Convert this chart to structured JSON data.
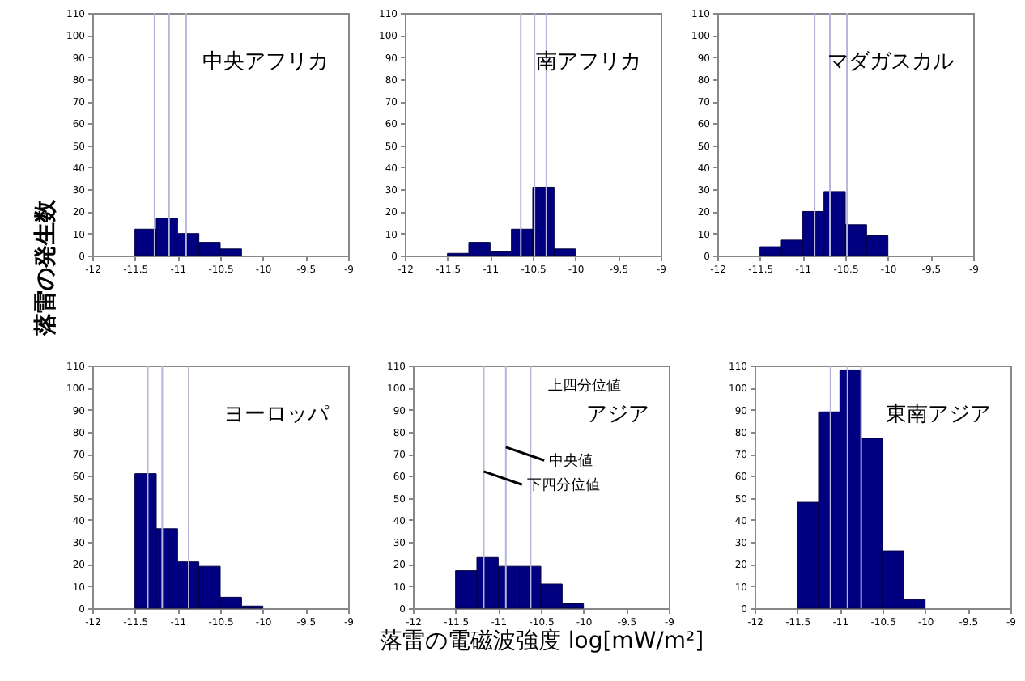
{
  "chart_data": [
    {
      "type": "histogram",
      "title": "中央アフリカ",
      "ylabel": "落雷の発生数",
      "bins": [
        -11.5,
        -11.25,
        -11,
        -10.75,
        -10.5,
        -10.25
      ],
      "values": [
        12,
        17,
        10,
        6,
        3
      ],
      "color": "#000080",
      "xlim": [
        -12,
        -9
      ],
      "xticks": [
        -12,
        -11.5,
        -11,
        -10.5,
        -10,
        -9.5,
        -9
      ],
      "ylim": [
        0,
        110
      ],
      "yticks": [
        0,
        10,
        20,
        30,
        40,
        50,
        60,
        70,
        80,
        90,
        100,
        110
      ],
      "grid": false,
      "ref_lines": [
        {
          "axis": "x",
          "value": -11.27,
          "color": "#b4b4dc"
        },
        {
          "axis": "x",
          "value": -11.1,
          "color": "#b4b4dc"
        },
        {
          "axis": "x",
          "value": -10.9,
          "color": "#b4b4dc"
        }
      ]
    },
    {
      "type": "histogram",
      "title": "南アフリカ",
      "bins": [
        -11.5,
        -11.25,
        -11,
        -10.75,
        -10.5,
        -10.25,
        -10
      ],
      "values": [
        1,
        6,
        2,
        12,
        31,
        3
      ],
      "color": "#000080",
      "xlim": [
        -12,
        -9
      ],
      "xticks": [
        -12,
        -11.5,
        -11,
        -10.5,
        -10,
        -9.5,
        -9
      ],
      "ylim": [
        0,
        110
      ],
      "yticks": [
        0,
        10,
        20,
        30,
        40,
        50,
        60,
        70,
        80,
        90,
        100,
        110
      ],
      "grid": false,
      "ref_lines": [
        {
          "axis": "x",
          "value": -10.64,
          "color": "#b4b4dc"
        },
        {
          "axis": "x",
          "value": -10.48,
          "color": "#b4b4dc"
        },
        {
          "axis": "x",
          "value": -10.34,
          "color": "#b4b4dc"
        }
      ]
    },
    {
      "type": "histogram",
      "title": "マダガスカル",
      "bins": [
        -11.5,
        -11.25,
        -11,
        -10.75,
        -10.5,
        -10.25,
        -10
      ],
      "values": [
        4,
        7,
        20,
        29,
        14,
        9
      ],
      "color": "#000080",
      "xlim": [
        -12,
        -9
      ],
      "xticks": [
        -12,
        -11.5,
        -11,
        -10.5,
        -10,
        -9.5,
        -9
      ],
      "ylim": [
        0,
        110
      ],
      "yticks": [
        0,
        10,
        20,
        30,
        40,
        50,
        60,
        70,
        80,
        90,
        100,
        110
      ],
      "grid": false,
      "ref_lines": [
        {
          "axis": "x",
          "value": -10.86,
          "color": "#b4b4dc"
        },
        {
          "axis": "x",
          "value": -10.68,
          "color": "#b4b4dc"
        },
        {
          "axis": "x",
          "value": -10.48,
          "color": "#b4b4dc"
        }
      ]
    },
    {
      "type": "histogram",
      "title": "ヨーロッパ",
      "bins": [
        -11.5,
        -11.25,
        -11,
        -10.75,
        -10.5,
        -10.25,
        -10
      ],
      "values": [
        61,
        36,
        21,
        19,
        5,
        1
      ],
      "color": "#000080",
      "xlim": [
        -12,
        -9
      ],
      "xticks": [
        -12,
        -11.5,
        -11,
        -10.5,
        -10,
        -9.5,
        -9
      ],
      "ylim": [
        0,
        110
      ],
      "yticks": [
        0,
        10,
        20,
        30,
        40,
        50,
        60,
        70,
        80,
        90,
        100,
        110
      ],
      "grid": false,
      "ref_lines": [
        {
          "axis": "x",
          "value": -11.35,
          "color": "#b4b4dc"
        },
        {
          "axis": "x",
          "value": -11.18,
          "color": "#b4b4dc"
        },
        {
          "axis": "x",
          "value": -10.87,
          "color": "#b4b4dc"
        }
      ]
    },
    {
      "type": "histogram",
      "title": "アジア",
      "xlabel": "落雷の電磁波強度 log[mW/m²]",
      "bins": [
        -11.5,
        -11.25,
        -11,
        -10.75,
        -10.5,
        -10.25,
        -10
      ],
      "values": [
        17,
        23,
        19,
        19,
        11,
        2
      ],
      "color": "#000080",
      "xlim": [
        -12,
        -9
      ],
      "xticks": [
        -12,
        -11.5,
        -11,
        -10.5,
        -10,
        -9.5,
        -9
      ],
      "ylim": [
        0,
        110
      ],
      "yticks": [
        0,
        10,
        20,
        30,
        40,
        50,
        60,
        70,
        80,
        90,
        100,
        110
      ],
      "grid": false,
      "ref_lines": [
        {
          "axis": "x",
          "value": -11.17,
          "color": "#b4b4dc"
        },
        {
          "axis": "x",
          "value": -10.91,
          "color": "#b4b4dc"
        },
        {
          "axis": "x",
          "value": -10.62,
          "color": "#b4b4dc"
        }
      ],
      "annotations": [
        "上四分位値",
        {
          "text": "中央値",
          "x": -10.91,
          "y": 73
        },
        {
          "text": "下四分位値",
          "x": -11.17,
          "y": 62
        }
      ]
    },
    {
      "type": "histogram",
      "title": "東南アジア",
      "bins": [
        -11.5,
        -11.25,
        -11,
        -10.75,
        -10.5,
        -10.25,
        -10
      ],
      "values": [
        48,
        89,
        108,
        77,
        26,
        4
      ],
      "color": "#000080",
      "xlim": [
        -12,
        -9
      ],
      "xticks": [
        -12,
        -11.5,
        -11,
        -10.5,
        -10,
        -9.5,
        -9
      ],
      "ylim": [
        0,
        110
      ],
      "yticks": [
        0,
        10,
        20,
        30,
        40,
        50,
        60,
        70,
        80,
        90,
        100,
        110
      ],
      "grid": false,
      "ref_lines": [
        {
          "axis": "x",
          "value": -11.11,
          "color": "#b4b4dc"
        },
        {
          "axis": "x",
          "value": -10.91,
          "color": "#b4b4dc"
        },
        {
          "axis": "x",
          "value": -10.75,
          "color": "#b4b4dc"
        }
      ]
    }
  ]
}
